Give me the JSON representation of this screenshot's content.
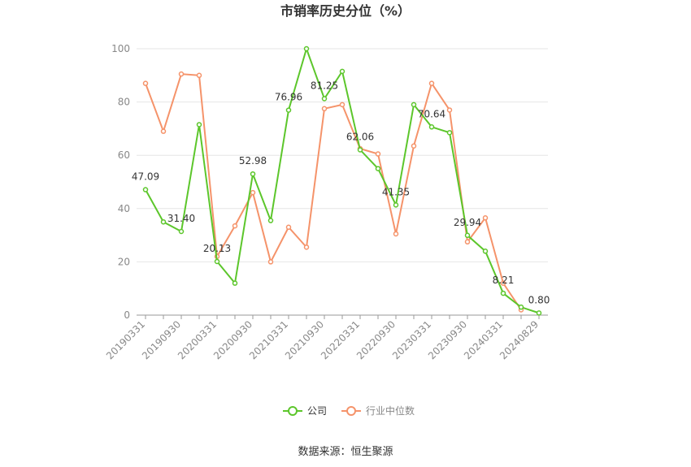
{
  "chart_data": {
    "type": "line",
    "title": "市销率历史分位（%）",
    "categories": [
      "20190331",
      null,
      "20190930",
      null,
      "20200331",
      null,
      "20200930",
      null,
      "20210331",
      null,
      "20210930",
      null,
      "20220331",
      null,
      "20220930",
      null,
      "20230331",
      null,
      "20230930",
      null,
      "20240331",
      null,
      "20240829"
    ],
    "series": [
      {
        "name": "公司",
        "color": "#5cc62b",
        "values": [
          47.09,
          35,
          31.4,
          71.5,
          20.13,
          12,
          52.98,
          35.5,
          76.96,
          100,
          81.25,
          91.5,
          62.06,
          55,
          41.35,
          79,
          70.64,
          68.5,
          29.94,
          24,
          8.21,
          3,
          0.8
        ],
        "value_labels": [
          "47.09",
          null,
          "31.40",
          null,
          "20.13",
          null,
          "52.98",
          null,
          "76.96",
          null,
          "81.25",
          null,
          "62.06",
          null,
          "41.35",
          null,
          "70.64",
          null,
          "29.94",
          null,
          "8.21",
          null,
          "0.80"
        ]
      },
      {
        "name": "行业中位数",
        "color": "#f5936a",
        "values": [
          87,
          69,
          90.5,
          90,
          22,
          33.5,
          46,
          20,
          33,
          25.5,
          77.5,
          79,
          62.5,
          60.5,
          30.5,
          63.5,
          87,
          77,
          27.5,
          36.5,
          12,
          2,
          null
        ]
      }
    ],
    "ylim": [
      0,
      100
    ],
    "yticks": [
      0,
      20,
      40,
      60,
      80,
      100
    ],
    "grid": true,
    "source": "数据来源：恒生聚源"
  }
}
